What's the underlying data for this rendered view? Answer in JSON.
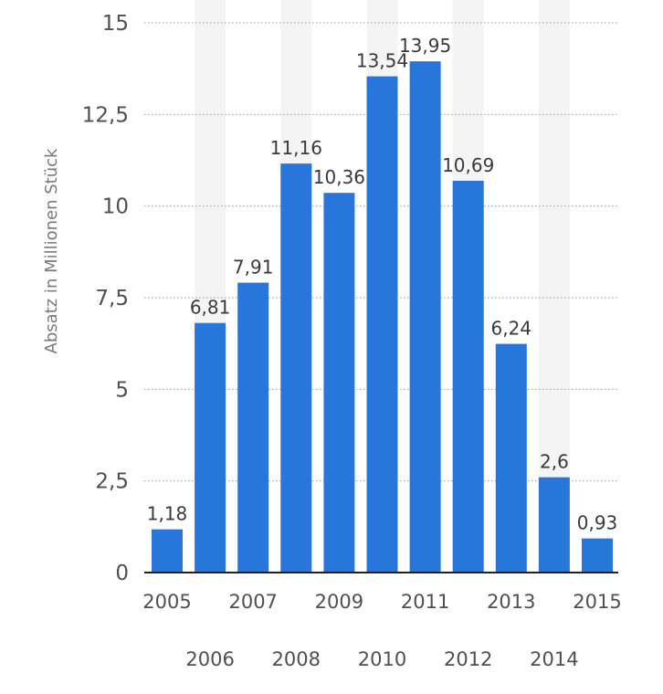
{
  "chart_data": {
    "type": "bar",
    "title": "",
    "xlabel": "",
    "ylabel": "Absatz in Millionen Stück",
    "categories": [
      "2005",
      "2006",
      "2007",
      "2008",
      "2009",
      "2010",
      "2011",
      "2012",
      "2013",
      "2014",
      "2015"
    ],
    "values": [
      1.18,
      6.81,
      7.91,
      11.16,
      10.36,
      13.54,
      13.95,
      10.69,
      6.24,
      2.6,
      0.93
    ],
    "value_labels": [
      "1,18",
      "6,81",
      "7,91",
      "11,16",
      "10,36",
      "13,54",
      "13,95",
      "10,69",
      "6,24",
      "2,6",
      "0,93"
    ],
    "ylim": [
      0,
      15
    ],
    "yticks": [
      0,
      2.5,
      5,
      7.5,
      10,
      12.5,
      15
    ],
    "ytick_labels": [
      "0",
      "2,5",
      "5",
      "7,5",
      "10",
      "12,5",
      "15"
    ],
    "grid": true,
    "bar_color": "#2776dc",
    "band_color": "#f4f4f4",
    "legend": "none"
  }
}
